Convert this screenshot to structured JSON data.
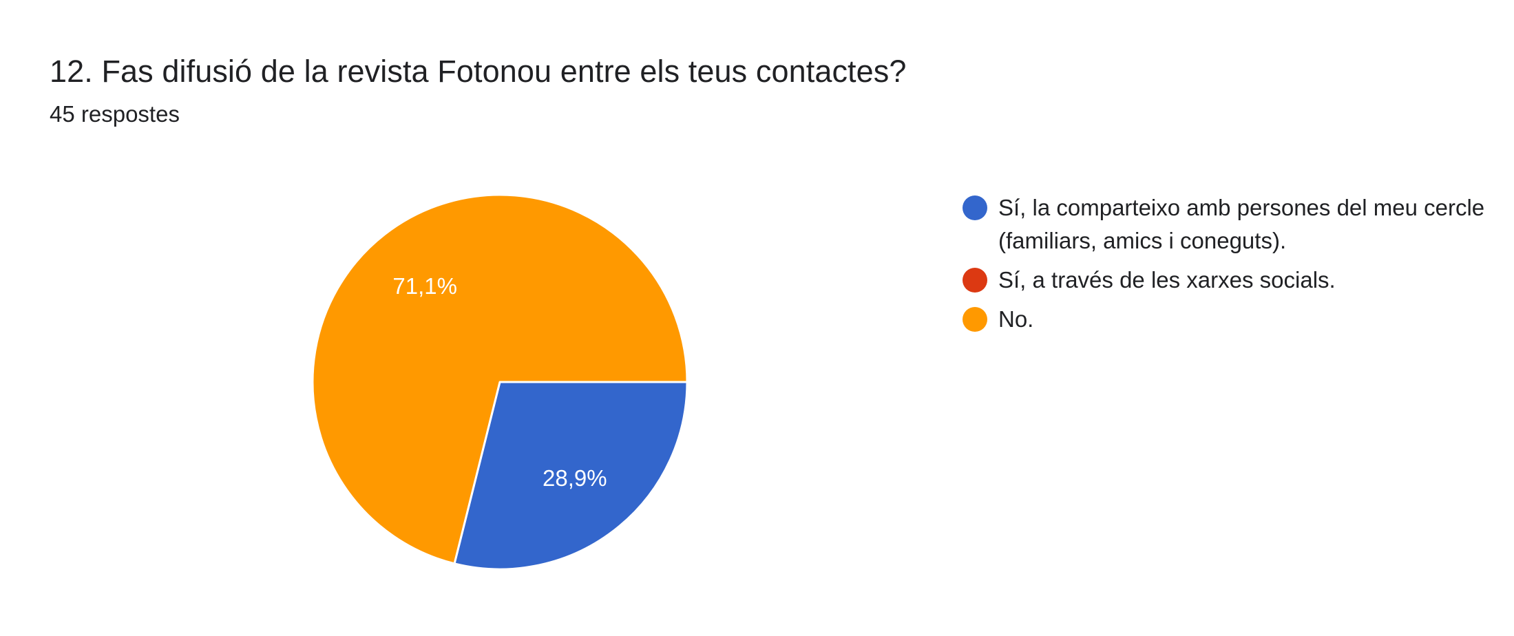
{
  "question": {
    "title": "12. Fas difusió de la revista Fotonou entre els teus contactes?",
    "response_count": "45 respostes"
  },
  "colors": {
    "series_1": "#3366cc",
    "series_2": "#dc3912",
    "series_3": "#ff9900",
    "slice_border": "#ffffff",
    "slice_label": "#ffffff"
  },
  "legend": {
    "items": [
      {
        "label": "Sí, la comparteixo amb persones del meu cercle (familiars, amics i coneguts).",
        "color": "#3366cc"
      },
      {
        "label": "Sí, a través de les xarxes socials.",
        "color": "#dc3912"
      },
      {
        "label": "No.",
        "color": "#ff9900"
      }
    ]
  },
  "chart_data": {
    "type": "pie",
    "title": "12. Fas difusió de la revista Fotonou entre els teus contactes?",
    "subtitle": "45 respostes",
    "categories": [
      "Sí, la comparteixo amb persones del meu cercle (familiars, amics i coneguts).",
      "Sí, a través de les xarxes socials.",
      "No."
    ],
    "values": [
      28.9,
      0,
      71.1
    ],
    "data_labels": [
      "28,9%",
      "",
      "71,1%"
    ],
    "colors": [
      "#3366cc",
      "#dc3912",
      "#ff9900"
    ],
    "legend_position": "right"
  }
}
